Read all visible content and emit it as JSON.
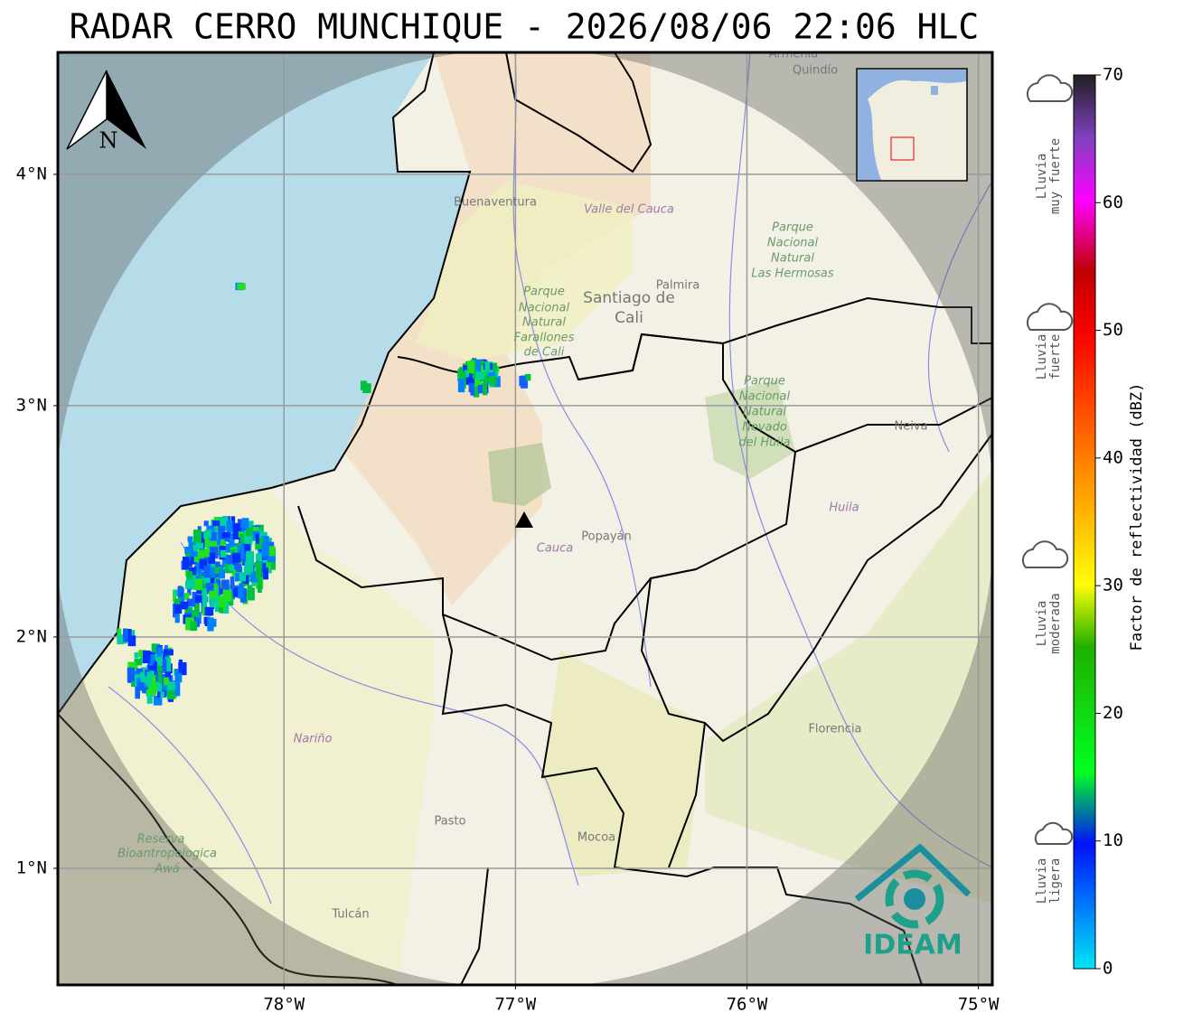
{
  "title": "RADAR CERRO MUNCHIQUE - 2026/08/06 22:06 HLC",
  "map": {
    "xlim": [
      -78.977,
      -74.94
    ],
    "ylim": [
      0.496,
      4.527
    ],
    "xticks": [
      {
        "value": -78,
        "label": "78°W"
      },
      {
        "value": -77,
        "label": "77°W"
      },
      {
        "value": -76,
        "label": "76°W"
      },
      {
        "value": -75,
        "label": "75°W"
      }
    ],
    "yticks": [
      {
        "value": 4,
        "label": "4°N"
      },
      {
        "value": 3,
        "label": "3°N"
      },
      {
        "value": 2,
        "label": "2°N"
      },
      {
        "value": 1,
        "label": "1°N"
      }
    ],
    "grid": true
  },
  "colorbar": {
    "label": "Factor de reflectividad (dBZ)",
    "lim": [
      0,
      70
    ],
    "ticks": [
      0,
      10,
      20,
      30,
      40,
      50,
      60,
      70
    ]
  },
  "rain_levels": [
    [
      "Lluvia",
      "muy fuerte"
    ],
    [
      "Lluvia",
      "fuerte"
    ],
    [
      "Lluvia",
      "moderada"
    ],
    [
      "Lluvia",
      "ligera"
    ]
  ],
  "places": [
    "Buenaventura",
    "Valle del Cauca",
    "Palmira",
    "Santiago de",
    "Cali",
    "Parque",
    "Nacional",
    "Natural",
    "Farallones",
    "de Cali",
    "Parque",
    "Nacional",
    "Natural",
    "Las Hermosas",
    "Parque",
    "Nacional",
    "Natural",
    "Nevado",
    "del Huila",
    "Neiva",
    "Huila",
    "Cauca",
    "Popayán",
    "Nariño",
    "Pasto",
    "Mocoa",
    "Florencia",
    "Reserva",
    "Bioantropologica",
    "Awá",
    "Tulcán",
    "Armenia",
    "Quindío"
  ],
  "north": "N",
  "logo": "IDEAM"
}
